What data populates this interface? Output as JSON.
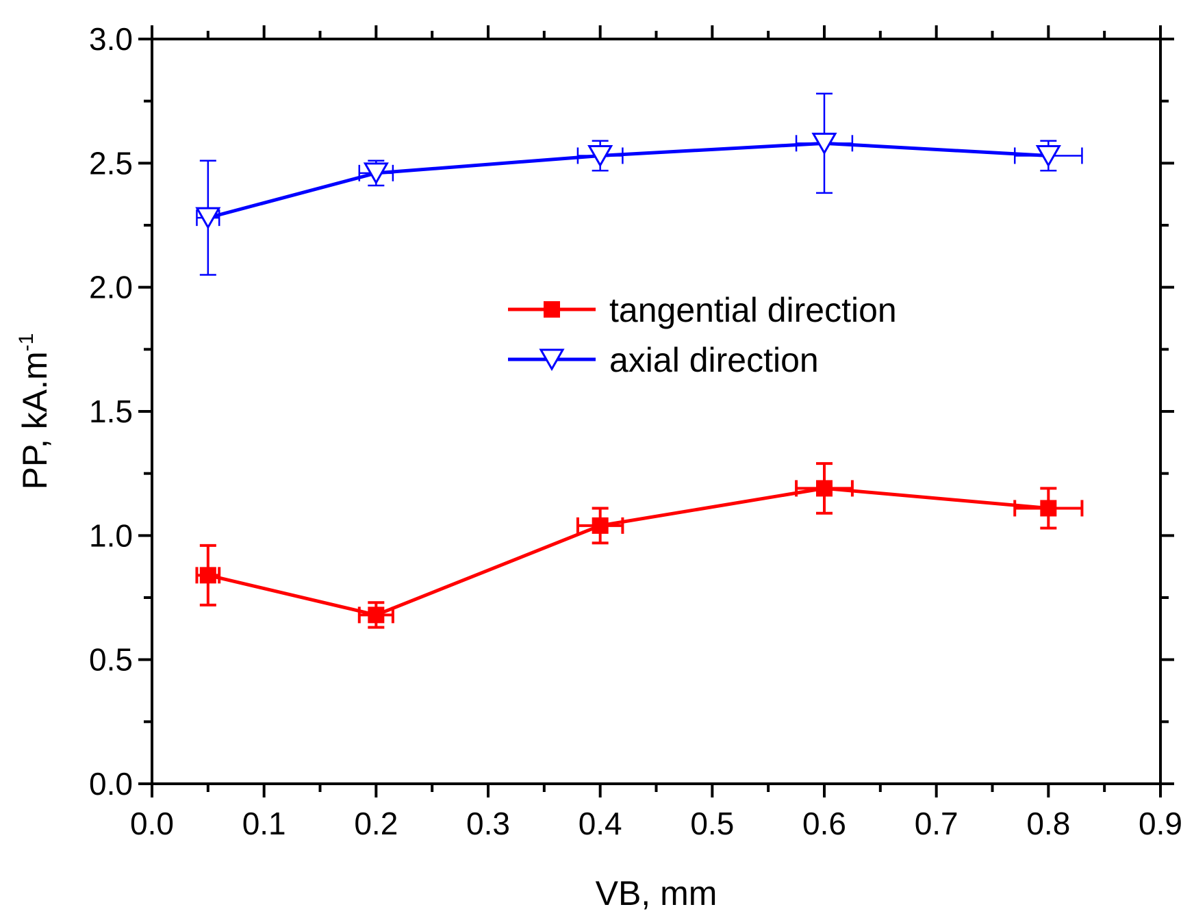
{
  "chart_data": {
    "type": "line",
    "title": "",
    "xlabel": "VB, mm",
    "ylabel_main": "PP, kA.m",
    "ylabel_superscript": "-1",
    "xlim": [
      0.0,
      0.9
    ],
    "ylim": [
      0.0,
      3.0
    ],
    "x_ticks": [
      "0.0",
      "0.1",
      "0.2",
      "0.3",
      "0.4",
      "0.5",
      "0.6",
      "0.7",
      "0.8",
      "0.9"
    ],
    "y_ticks": [
      "0.0",
      "0.5",
      "1.0",
      "1.5",
      "2.0",
      "2.5",
      "3.0"
    ],
    "grid": false,
    "legend_position": "center-right",
    "series": [
      {
        "name": "tangential direction",
        "color": "#ff0000",
        "marker": "filled-square",
        "x": [
          0.05,
          0.2,
          0.4,
          0.6,
          0.8
        ],
        "y": [
          0.84,
          0.68,
          1.04,
          1.19,
          1.11
        ],
        "y_err": [
          0.12,
          0.05,
          0.07,
          0.1,
          0.08
        ],
        "x_err": [
          0.01,
          0.015,
          0.02,
          0.025,
          0.03
        ]
      },
      {
        "name": "axial direction",
        "color": "#0000ff",
        "marker": "open-triangle-down",
        "x": [
          0.05,
          0.2,
          0.4,
          0.6,
          0.8
        ],
        "y": [
          2.28,
          2.46,
          2.53,
          2.58,
          2.53
        ],
        "y_err": [
          0.23,
          0.05,
          0.06,
          0.2,
          0.06
        ],
        "x_err": [
          0.01,
          0.015,
          0.02,
          0.025,
          0.03
        ]
      }
    ]
  }
}
